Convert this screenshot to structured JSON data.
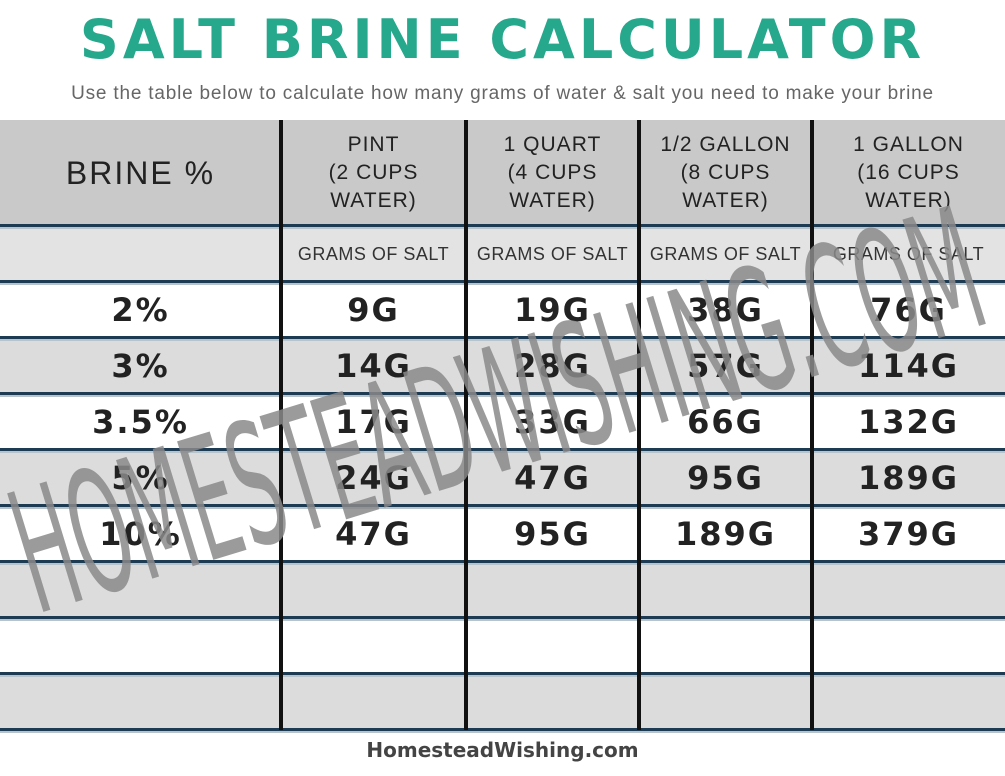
{
  "header": {
    "title": "SALT BRINE CALCULATOR",
    "subtitle": "Use the table below to calculate how many grams of water & salt you need to make your brine"
  },
  "table": {
    "columns": [
      [
        "BRINE %"
      ],
      [
        "PINT",
        "(2 CUPS",
        "WATER)"
      ],
      [
        "1 QUART",
        "(4 CUPS",
        "WATER)"
      ],
      [
        "1/2 GALLON",
        "(8 CUPS",
        "WATER)"
      ],
      [
        "1 GALLON",
        "(16 CUPS",
        "WATER)"
      ]
    ],
    "subheader": [
      "GRAMS OF SALT",
      "GRAMS OF SALT",
      "GRAMS OF SALT",
      "GRAMS OF SALT"
    ],
    "rows": [
      [
        "2%",
        "9G",
        "19G",
        "38G",
        "76G"
      ],
      [
        "3%",
        "14G",
        "28G",
        "57G",
        "114G"
      ],
      [
        "3.5%",
        "17G",
        "33G",
        "66G",
        "132G"
      ],
      [
        "5%",
        "24G",
        "47G",
        "95G",
        "189G"
      ],
      [
        "10%",
        "47G",
        "95G",
        "189G",
        "379G"
      ]
    ]
  },
  "watermark": "HOMESTEADWISHING.COM",
  "footer": "HomesteadWishing.com"
}
